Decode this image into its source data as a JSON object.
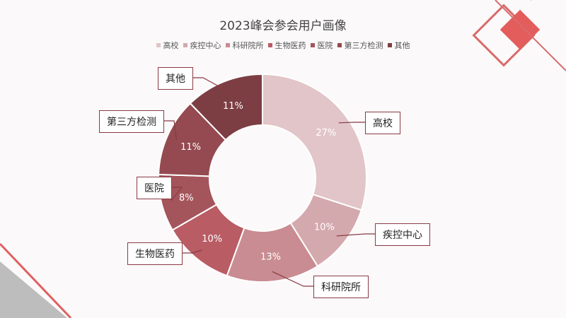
{
  "chart_data": {
    "type": "pie",
    "donut": true,
    "title": "2023峰会参会用户画像",
    "legend_position": "top",
    "categories": [
      "高校",
      "疾控中心",
      "科研院所",
      "生物医药",
      "医院",
      "第三方检测",
      "其他"
    ],
    "values": [
      27,
      10,
      13,
      10,
      8,
      11,
      11
    ],
    "data_labels": [
      "27%",
      "10%",
      "13%",
      "10%",
      "8%",
      "11%",
      "11%"
    ],
    "colors": [
      "#e2c5c8",
      "#d4a9ad",
      "#c98c92",
      "#b95c64",
      "#a4555c",
      "#944a50",
      "#7c3e43"
    ]
  }
}
